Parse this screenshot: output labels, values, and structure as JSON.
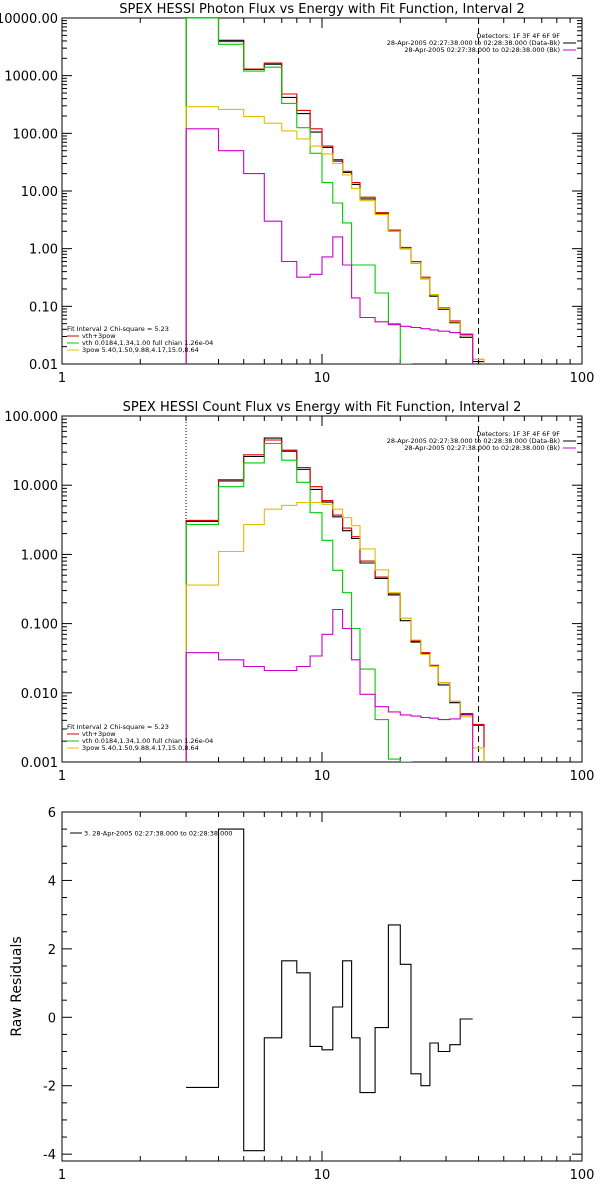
{
  "chart_data": [
    {
      "type": "line",
      "title": "SPEX HESSI Photon Flux vs Energy with Fit Function, Interval 2",
      "xscale": "log",
      "yscale": "log",
      "xlim": [
        1,
        100
      ],
      "ylim": [
        0.01,
        10000
      ],
      "xticks": [
        1,
        10,
        100
      ],
      "xtick_labels": [
        "1",
        "10",
        "100"
      ],
      "yticks": [
        0.01,
        0.1,
        1,
        10,
        100,
        1000,
        10000
      ],
      "ytick_labels": [
        "0.01",
        "0.10",
        "1.00",
        "10.00",
        "100.00",
        "1000.00",
        "10000.00"
      ],
      "info_lines": [
        "Detectors: 1F 3F 4F 6F 9F",
        "28-Apr-2005 02:27:38.000 to 02:28:38.000 (Data-Bk)",
        "28-Apr-2005 02:27:38.000 to 02:28:38.000 (Bk)"
      ],
      "fit_lines": [
        "Fit Interval 2   Chi-square = 5.23",
        "vth+3pow",
        "vth 0.0184,1.34,1.00  full chian 1.26e-04",
        "3pow 5.40,1.50,9.88,4.17,15.0,8.64"
      ],
      "vlines": [
        {
          "x": 3,
          "style": "dotted"
        },
        {
          "x": 40,
          "style": "dashed"
        }
      ],
      "bin_edges": [
        3,
        4,
        5,
        6,
        7,
        8,
        9,
        10,
        11,
        12,
        13,
        14,
        16,
        18,
        20,
        22,
        24,
        26,
        28,
        31,
        34,
        38,
        42
      ],
      "series": [
        {
          "name": "Data-Bk",
          "color": "#000000",
          "values": [
            10000,
            4100,
            1280,
            1580,
            420,
            220,
            105,
            57,
            33,
            21,
            13,
            7.3,
            4.0,
            2.0,
            1.0,
            0.56,
            0.3,
            0.15,
            0.088,
            0.052,
            0.029,
            0.011
          ]
        },
        {
          "name": "vth+3pow",
          "color": "#e00000",
          "values": [
            10000,
            3900,
            1300,
            1650,
            480,
            250,
            120,
            60,
            35,
            22,
            14,
            7.8,
            4.2,
            2.1,
            1.05,
            0.6,
            0.32,
            0.16,
            0.094,
            0.056,
            0.032,
            0.012
          ]
        },
        {
          "name": "vth",
          "color": "#00cc00",
          "values": [
            10000,
            3500,
            1200,
            1400,
            330,
            125,
            45,
            14,
            6.2,
            2.8,
            0.52,
            0.52,
            0.17,
            0.05,
            0.01
          ]
        },
        {
          "name": "3pow",
          "color": "#e0c000",
          "values": [
            290,
            260,
            195,
            150,
            110,
            80,
            60,
            44,
            30,
            19,
            11,
            6.8,
            3.9,
            2.0,
            1.0,
            0.56,
            0.3,
            0.16,
            0.091,
            0.054,
            0.031,
            0.012
          ]
        },
        {
          "name": "Bk",
          "color": "#cc00cc",
          "values": [
            120,
            50,
            20,
            3.0,
            0.6,
            0.32,
            0.36,
            0.72,
            1.6,
            0.52,
            0.14,
            0.064,
            0.054,
            0.048,
            0.045,
            0.043,
            0.041,
            0.039,
            0.037,
            0.035,
            0.033
          ]
        }
      ]
    },
    {
      "type": "line",
      "title": "SPEX HESSI Count Flux vs Energy with Fit Function, Interval 2",
      "xscale": "log",
      "yscale": "log",
      "xlim": [
        1,
        100
      ],
      "ylim": [
        0.001,
        100
      ],
      "xticks": [
        1,
        10,
        100
      ],
      "xtick_labels": [
        "1",
        "10",
        "100"
      ],
      "yticks": [
        0.001,
        0.01,
        0.1,
        1,
        10,
        100
      ],
      "ytick_labels": [
        "0.001",
        "0.010",
        "0.100",
        "1.000",
        "10.000",
        "100.000"
      ],
      "info_lines": [
        "Detectors: 1F 3F 4F 6F 9F",
        "28-Apr-2005 02:27:38.000 to 02:28:38.000 (Data-Bk)",
        "28-Apr-2005 02:27:38.000 to 02:28:38.000 (Bk)"
      ],
      "fit_lines": [
        "Fit Interval 2   Chi-square = 5.23",
        "vth+3pow",
        "vth 0.0184,1.34,1.00  full chian 1.26e-04",
        "3pow 5.40,1.50,9.88,4.17,15.0,8.64"
      ],
      "vlines": [
        {
          "x": 3,
          "style": "dotted"
        },
        {
          "x": 40,
          "style": "dashed"
        }
      ],
      "bin_edges": [
        3,
        4,
        5,
        6,
        7,
        8,
        9,
        10,
        11,
        12,
        13,
        14,
        16,
        18,
        20,
        22,
        24,
        26,
        28,
        31,
        34,
        38,
        42
      ],
      "series": [
        {
          "name": "Data-Bk",
          "color": "#000000",
          "values": [
            3.0,
            11.5,
            26,
            48,
            31,
            17,
            8.7,
            5.7,
            3.5,
            2.2,
            1.7,
            0.75,
            0.45,
            0.26,
            0.11,
            0.054,
            0.037,
            0.024,
            0.013,
            0.0072,
            0.0049,
            0.0034
          ]
        },
        {
          "name": "vth+3pow",
          "color": "#e00000",
          "values": [
            3.1,
            12,
            27.5,
            45,
            32,
            18,
            9.5,
            6.0,
            3.7,
            2.4,
            1.8,
            0.8,
            0.47,
            0.27,
            0.12,
            0.056,
            0.038,
            0.025,
            0.014,
            0.0075,
            0.005,
            0.0035
          ]
        },
        {
          "name": "vth",
          "color": "#00cc00",
          "values": [
            2.7,
            9.5,
            21,
            40,
            23,
            11,
            4.0,
            1.6,
            0.59,
            0.28,
            0.085,
            0.022,
            0.0041,
            0.0011,
            0.001
          ]
        },
        {
          "name": "3pow",
          "color": "#e0c000",
          "values": [
            0.36,
            1.1,
            2.7,
            4.5,
            5.1,
            5.6,
            5.6,
            5.3,
            4.5,
            3.4,
            2.6,
            1.2,
            0.6,
            0.28,
            0.12,
            0.058,
            0.036,
            0.024,
            0.014,
            0.0075,
            0.0045,
            0.0016
          ]
        },
        {
          "name": "Bk",
          "color": "#cc00cc",
          "values": [
            0.038,
            0.03,
            0.024,
            0.021,
            0.021,
            0.024,
            0.034,
            0.07,
            0.16,
            0.085,
            0.03,
            0.0095,
            0.0063,
            0.0053,
            0.0048,
            0.0046,
            0.0044,
            0.0043,
            0.0041,
            0.0042,
            0.0048
          ]
        }
      ]
    },
    {
      "type": "line",
      "title": "",
      "ylabel": "Raw Residuals",
      "xscale": "log",
      "yscale": "linear",
      "xlim": [
        1,
        100
      ],
      "ylim": [
        -4.2,
        6.0
      ],
      "xticks": [
        1,
        10,
        100
      ],
      "xtick_labels": [
        "1",
        "10",
        "100"
      ],
      "yticks": [
        -4,
        -2,
        0,
        2,
        4,
        6
      ],
      "ytick_labels": [
        "-4",
        "-2",
        "0",
        "2",
        "4",
        "6"
      ],
      "legend_entry": "3. 28-Apr-2005 02:27:38.000 to 02:28:38.000",
      "bin_edges": [
        3,
        4,
        5,
        6,
        7,
        8,
        9,
        10,
        11,
        12,
        13,
        14,
        16,
        18,
        20,
        22,
        24,
        26,
        28,
        31,
        34,
        38,
        40
      ],
      "series": [
        {
          "name": "3. 28-Apr-2005 02:27:38.000 to 02:28:38.000",
          "color": "#000000",
          "values": [
            -2.05,
            5.5,
            -3.9,
            -0.6,
            1.65,
            1.3,
            -0.85,
            -0.95,
            0.3,
            1.65,
            -0.6,
            -2.2,
            -0.3,
            2.7,
            1.55,
            -1.65,
            -2.0,
            -0.75,
            -1.0,
            -0.8,
            -0.05
          ]
        }
      ]
    }
  ]
}
